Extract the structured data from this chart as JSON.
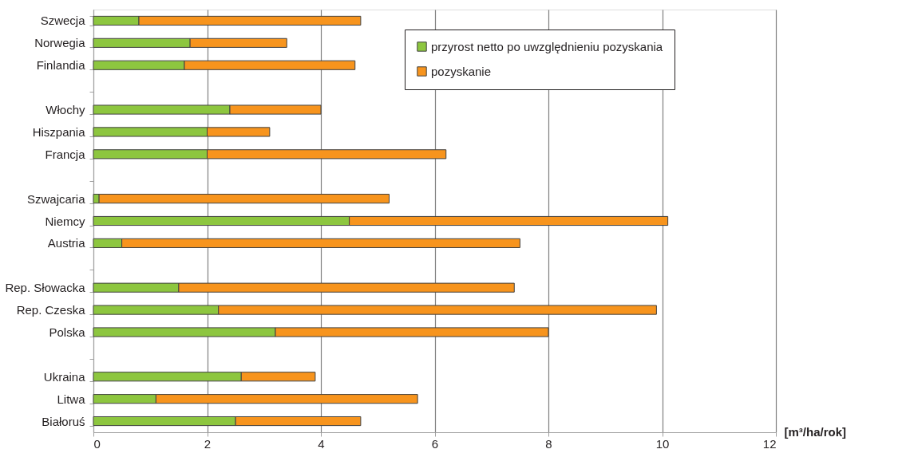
{
  "chart_data": {
    "type": "bar",
    "orientation": "horizontal",
    "stacked": true,
    "xlabel": "[m³/ha/rok]",
    "categories": [
      "Szwecja",
      "Norwegia",
      "Finlandia",
      null,
      "Włochy",
      "Hiszpania",
      "Francja",
      null,
      "Szwajcaria",
      "Niemcy",
      "Austria",
      null,
      "Rep. Słowacka",
      "Rep. Czeska",
      "Polska",
      null,
      "Ukraina",
      "Litwa",
      "Białoruś"
    ],
    "series": [
      {
        "name": "przyrost netto po uwzględnieniu pozyskania",
        "color": "#8dc63f",
        "values": [
          0.8,
          1.7,
          1.6,
          null,
          2.4,
          2.0,
          2.0,
          null,
          0.1,
          4.5,
          0.5,
          null,
          1.5,
          2.2,
          3.2,
          null,
          2.6,
          1.1,
          2.5
        ]
      },
      {
        "name": "pozyskanie",
        "color": "#f7941d",
        "values": [
          3.9,
          1.7,
          3.0,
          null,
          1.6,
          1.1,
          4.2,
          null,
          5.1,
          5.6,
          7.0,
          null,
          5.9,
          7.7,
          4.8,
          null,
          1.3,
          4.6,
          2.2
        ]
      }
    ],
    "xlim": [
      0,
      12
    ],
    "xticks": [
      0,
      2,
      4,
      6,
      8,
      10,
      12
    ],
    "grid": "x",
    "legend": "top right"
  }
}
